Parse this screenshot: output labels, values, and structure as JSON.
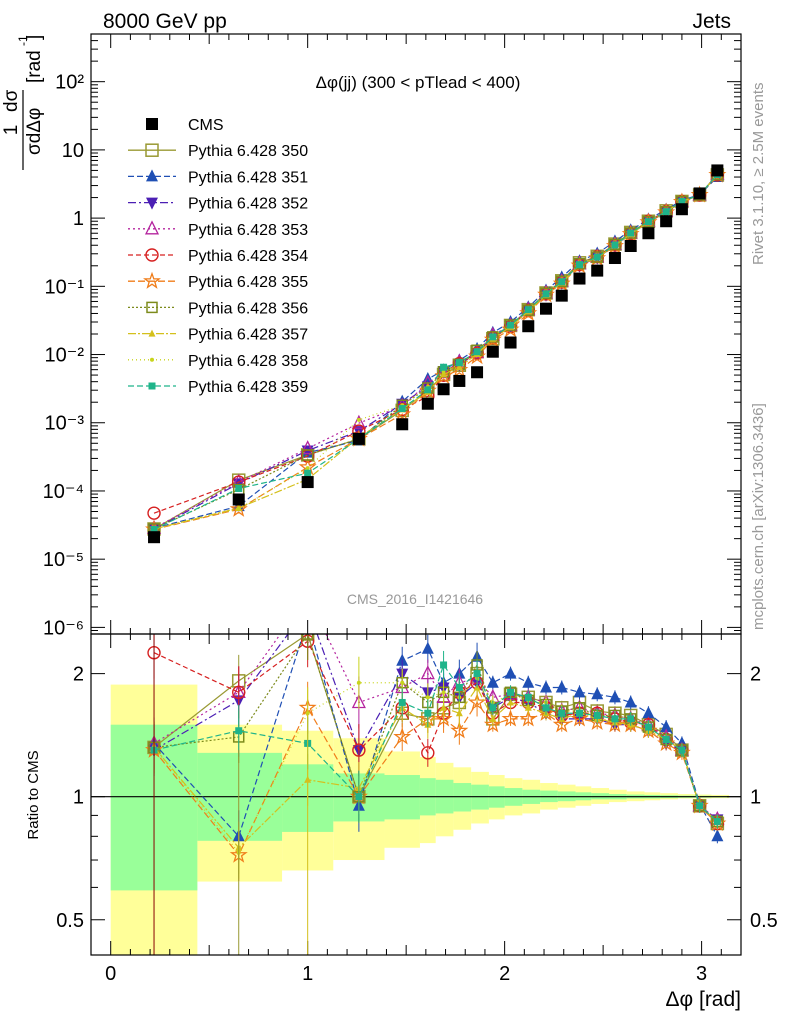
{
  "header": {
    "left": "8000 GeV pp",
    "right": "Jets"
  },
  "side_text": {
    "top": "Rivet 3.1.10, ≥ 2.5M events",
    "bottom": "mcplots.cern.ch [arXiv:1306.3436]"
  },
  "watermark": "CMS_2016_I1421646",
  "chart_data": {
    "type": "line",
    "title": "Δφ(jj) (300 < pTlead <  400)",
    "ylabel_main": "1/σ dσ/dΔφ [rad⁻¹]",
    "ylabel_ratio": "Ratio to CMS",
    "xlabel": "Δφ [rad]",
    "xlim": [
      -0.1,
      3.2
    ],
    "ylim_main": [
      8e-07,
      500
    ],
    "ylog_main": true,
    "ylim_ratio": [
      0.41,
      2.5
    ],
    "ylog_ratio": true,
    "x_ticks": [
      "0",
      "1",
      "2",
      "3"
    ],
    "y_ticks_main": [
      "10⁻⁶",
      "10⁻⁵",
      "10⁻⁴",
      "10⁻³",
      "10⁻²",
      "10⁻¹",
      "1",
      "10",
      "10²"
    ],
    "y_ticks_ratio": [
      "0.5",
      "1",
      "2"
    ],
    "x": [
      0.22,
      0.65,
      1.0,
      1.26,
      1.48,
      1.61,
      1.69,
      1.77,
      1.86,
      1.94,
      2.03,
      2.12,
      2.21,
      2.29,
      2.38,
      2.47,
      2.56,
      2.64,
      2.73,
      2.82,
      2.9,
      2.99,
      3.08
    ],
    "cms": [
      2.1e-05,
      7.5e-05,
      0.000135,
      0.00058,
      0.00095,
      0.0019,
      0.0031,
      0.0041,
      0.0055,
      0.011,
      0.015,
      0.026,
      0.047,
      0.073,
      0.13,
      0.17,
      0.26,
      0.39,
      0.6,
      0.9,
      1.35,
      2.3,
      5.0
    ],
    "band_edges": [
      0.0,
      0.44,
      0.87,
      1.13,
      1.39,
      1.57,
      1.65,
      1.74,
      1.83,
      1.92,
      2.0,
      2.09,
      2.18,
      2.27,
      2.36,
      2.44,
      2.53,
      2.62,
      2.71,
      2.79,
      2.88,
      2.97,
      3.05,
      3.14
    ],
    "stat_band": [
      [
        0.59,
        1.5
      ],
      [
        0.78,
        1.28
      ],
      [
        0.82,
        1.2
      ],
      [
        0.87,
        1.14
      ],
      [
        0.88,
        1.13
      ],
      [
        0.9,
        1.11
      ],
      [
        0.91,
        1.1
      ],
      [
        0.92,
        1.08
      ],
      [
        0.93,
        1.07
      ],
      [
        0.94,
        1.06
      ],
      [
        0.95,
        1.05
      ],
      [
        0.96,
        1.04
      ],
      [
        0.97,
        1.035
      ],
      [
        0.975,
        1.03
      ],
      [
        0.98,
        1.025
      ],
      [
        0.985,
        1.02
      ],
      [
        0.985,
        1.015
      ],
      [
        0.99,
        1.012
      ],
      [
        0.99,
        1.01
      ],
      [
        0.992,
        1.008
      ],
      [
        0.994,
        1.006
      ],
      [
        0.995,
        1.005
      ],
      [
        0.996,
        1.004
      ]
    ],
    "total_band": [
      [
        0.41,
        1.88
      ],
      [
        0.62,
        1.5
      ],
      [
        0.66,
        1.45
      ],
      [
        0.7,
        1.39
      ],
      [
        0.75,
        1.29
      ],
      [
        0.77,
        1.25
      ],
      [
        0.8,
        1.21
      ],
      [
        0.83,
        1.18
      ],
      [
        0.86,
        1.15
      ],
      [
        0.88,
        1.13
      ],
      [
        0.9,
        1.11
      ],
      [
        0.91,
        1.1
      ],
      [
        0.93,
        1.08
      ],
      [
        0.94,
        1.07
      ],
      [
        0.95,
        1.06
      ],
      [
        0.96,
        1.05
      ],
      [
        0.97,
        1.04
      ],
      [
        0.975,
        1.03
      ],
      [
        0.98,
        1.025
      ],
      [
        0.985,
        1.02
      ],
      [
        0.99,
        1.015
      ],
      [
        0.99,
        1.012
      ],
      [
        0.992,
        1.01
      ]
    ],
    "series": [
      {
        "name": "CMS",
        "color": "#000000",
        "marker": "square-filled"
      },
      {
        "name": "Pythia 6.428 350",
        "color": "#999933",
        "marker": "square-open",
        "dash": "",
        "ratio": [
          1.32,
          1.92,
          2.5,
          1.0,
          1.6,
          1.55,
          1.65,
          1.7,
          2.0,
          1.55,
          1.78,
          1.75,
          1.7,
          1.65,
          1.7,
          1.62,
          1.6,
          1.58,
          1.5,
          1.42,
          1.3,
          0.95,
          0.86
        ]
      },
      {
        "name": "Pythia 6.428 351",
        "color": "#1f4fb4",
        "marker": "triangle-up",
        "dash": "6,3",
        "ratio": [
          1.35,
          0.8,
          2.7,
          0.95,
          2.15,
          2.3,
          1.9,
          2.0,
          2.2,
          1.9,
          2.0,
          1.9,
          1.85,
          1.85,
          1.8,
          1.78,
          1.75,
          1.7,
          1.6,
          1.48,
          1.35,
          0.96,
          0.8
        ]
      },
      {
        "name": "Pythia 6.428 352",
        "color": "#4b1fb4",
        "marker": "triangle-down",
        "dash": "8,3,2,3",
        "ratio": [
          1.3,
          1.72,
          2.9,
          1.3,
          2.0,
          1.8,
          1.85,
          1.75,
          1.9,
          1.65,
          1.75,
          1.7,
          1.6,
          1.55,
          1.55,
          1.55,
          1.5,
          1.5,
          1.45,
          1.35,
          1.3,
          0.95,
          0.88
        ]
      },
      {
        "name": "Pythia 6.428 353",
        "color": "#b4249e",
        "marker": "triangle-open",
        "dash": "2,3",
        "ratio": [
          1.35,
          1.8,
          3.1,
          1.7,
          1.85,
          2.0,
          1.75,
          1.9,
          1.95,
          1.75,
          1.78,
          1.75,
          1.7,
          1.62,
          1.65,
          1.6,
          1.58,
          1.55,
          1.5,
          1.4,
          1.3,
          0.95,
          0.88
        ]
      },
      {
        "name": "Pythia 6.428 354",
        "color": "#d62020",
        "marker": "circle-open",
        "dash": "5,3",
        "ratio": [
          2.25,
          1.8,
          2.4,
          1.3,
          1.65,
          1.28,
          1.6,
          1.8,
          1.9,
          1.6,
          1.7,
          1.7,
          1.65,
          1.58,
          1.6,
          1.6,
          1.55,
          1.52,
          1.5,
          1.38,
          1.3,
          0.95,
          0.86
        ]
      },
      {
        "name": "Pythia 6.428 355",
        "color": "#f07d1a",
        "marker": "star",
        "dash": "7,3",
        "ratio": [
          1.3,
          0.72,
          1.65,
          1.0,
          1.4,
          1.55,
          1.55,
          1.45,
          1.7,
          1.5,
          1.55,
          1.55,
          1.6,
          1.5,
          1.55,
          1.52,
          1.5,
          1.5,
          1.45,
          1.35,
          1.28,
          0.95,
          0.86
        ]
      },
      {
        "name": "Pythia 6.428 356",
        "color": "#7d8b1c",
        "marker": "square-open-small",
        "dash": "2,2",
        "ratio": [
          1.32,
          1.4,
          2.5,
          1.0,
          1.9,
          1.7,
          1.8,
          1.75,
          2.1,
          1.65,
          1.8,
          1.72,
          1.68,
          1.62,
          1.65,
          1.58,
          1.58,
          1.55,
          1.48,
          1.38,
          1.3,
          0.95,
          0.87
        ]
      },
      {
        "name": "Pythia 6.428 357",
        "color": "#d4c01c",
        "marker": "triangle-small",
        "dash": "8,2,2,2",
        "ratio": [
          1.32,
          0.75,
          1.1,
          1.05,
          1.65,
          1.5,
          1.65,
          1.6,
          1.85,
          1.55,
          1.7,
          1.65,
          1.6,
          1.55,
          1.6,
          1.55,
          1.52,
          1.5,
          1.45,
          1.38,
          1.3,
          0.95,
          0.87
        ]
      },
      {
        "name": "Pythia 6.428 358",
        "color": "#c8d41c",
        "marker": "dot",
        "dash": "1,3",
        "ratio": [
          1.32,
          0.73,
          1.6,
          1.9,
          1.9,
          1.75,
          1.8,
          1.75,
          1.95,
          1.7,
          1.78,
          1.72,
          1.7,
          1.62,
          1.62,
          1.58,
          1.55,
          1.55,
          1.48,
          1.38,
          1.3,
          0.95,
          0.87
        ]
      },
      {
        "name": "Pythia 6.428 359",
        "color": "#1fb48a",
        "marker": "square-filled-small",
        "dash": "6,3",
        "ratio": [
          1.3,
          1.45,
          1.35,
          1.0,
          1.7,
          1.6,
          2.1,
          1.85,
          2.0,
          1.65,
          1.8,
          1.75,
          1.65,
          1.6,
          1.6,
          1.58,
          1.55,
          1.55,
          1.48,
          1.38,
          1.3,
          0.95,
          0.87
        ]
      }
    ]
  }
}
